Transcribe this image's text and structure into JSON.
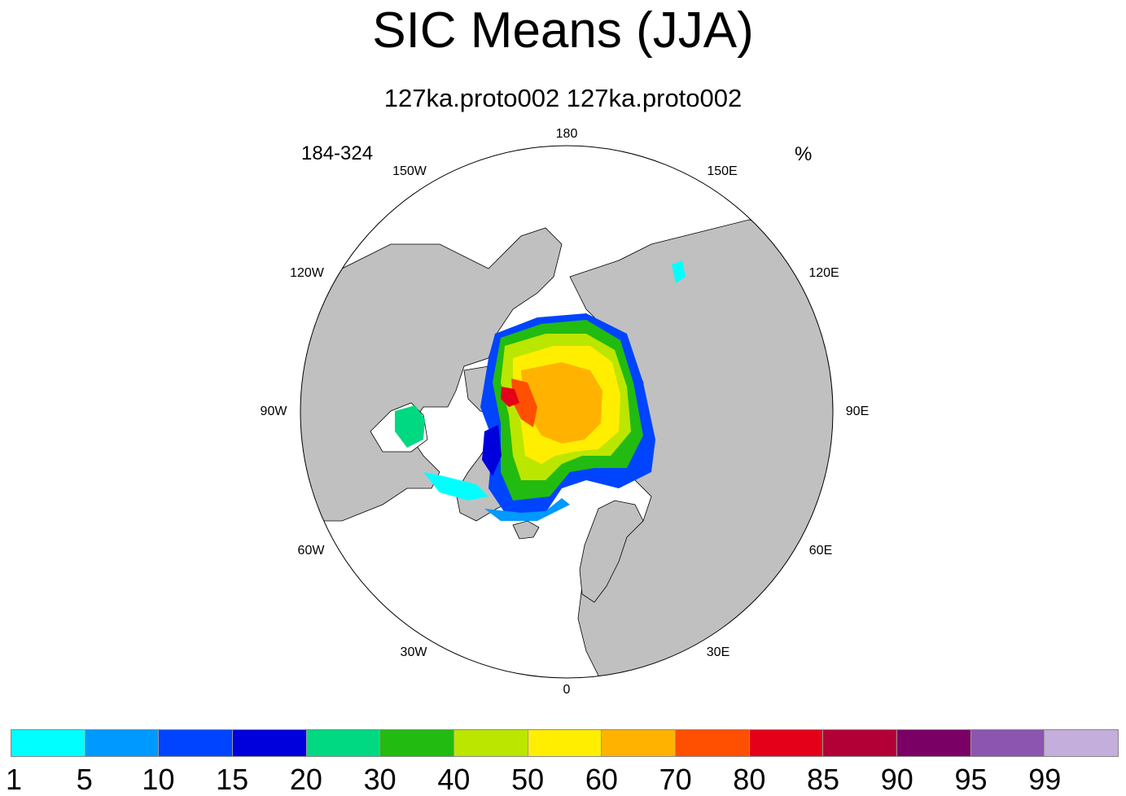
{
  "title": "SIC Means (JJA)",
  "subtitle": "127ka.proto002  127ka.proto002",
  "left_label": "184-324",
  "right_label": "%",
  "longitude_labels": {
    "lon180": "180",
    "lon150e": "150E",
    "lon120e": "120E",
    "lon90e": "90E",
    "lon60e": "60E",
    "lon30e": "30E",
    "lon0": "0",
    "lon30w": "30W",
    "lon60w": "60W",
    "lon90w": "90W",
    "lon120w": "120W",
    "lon150w": "150W"
  },
  "colors": {
    "land": "#c0c0c0",
    "ocean": "#ffffff",
    "outline": "#000000"
  },
  "colorbar": {
    "colors": [
      "#00ffff",
      "#0099ff",
      "#0044ff",
      "#0000dd",
      "#00d882",
      "#22bb11",
      "#bbe600",
      "#ffee00",
      "#ffb300",
      "#ff4f00",
      "#e5001a",
      "#b20036",
      "#7a0066",
      "#8b55b0",
      "#c4aedb"
    ],
    "labels": [
      "1",
      "5",
      "10",
      "15",
      "20",
      "30",
      "40",
      "50",
      "60",
      "70",
      "80",
      "85",
      "90",
      "95",
      "99"
    ]
  }
}
